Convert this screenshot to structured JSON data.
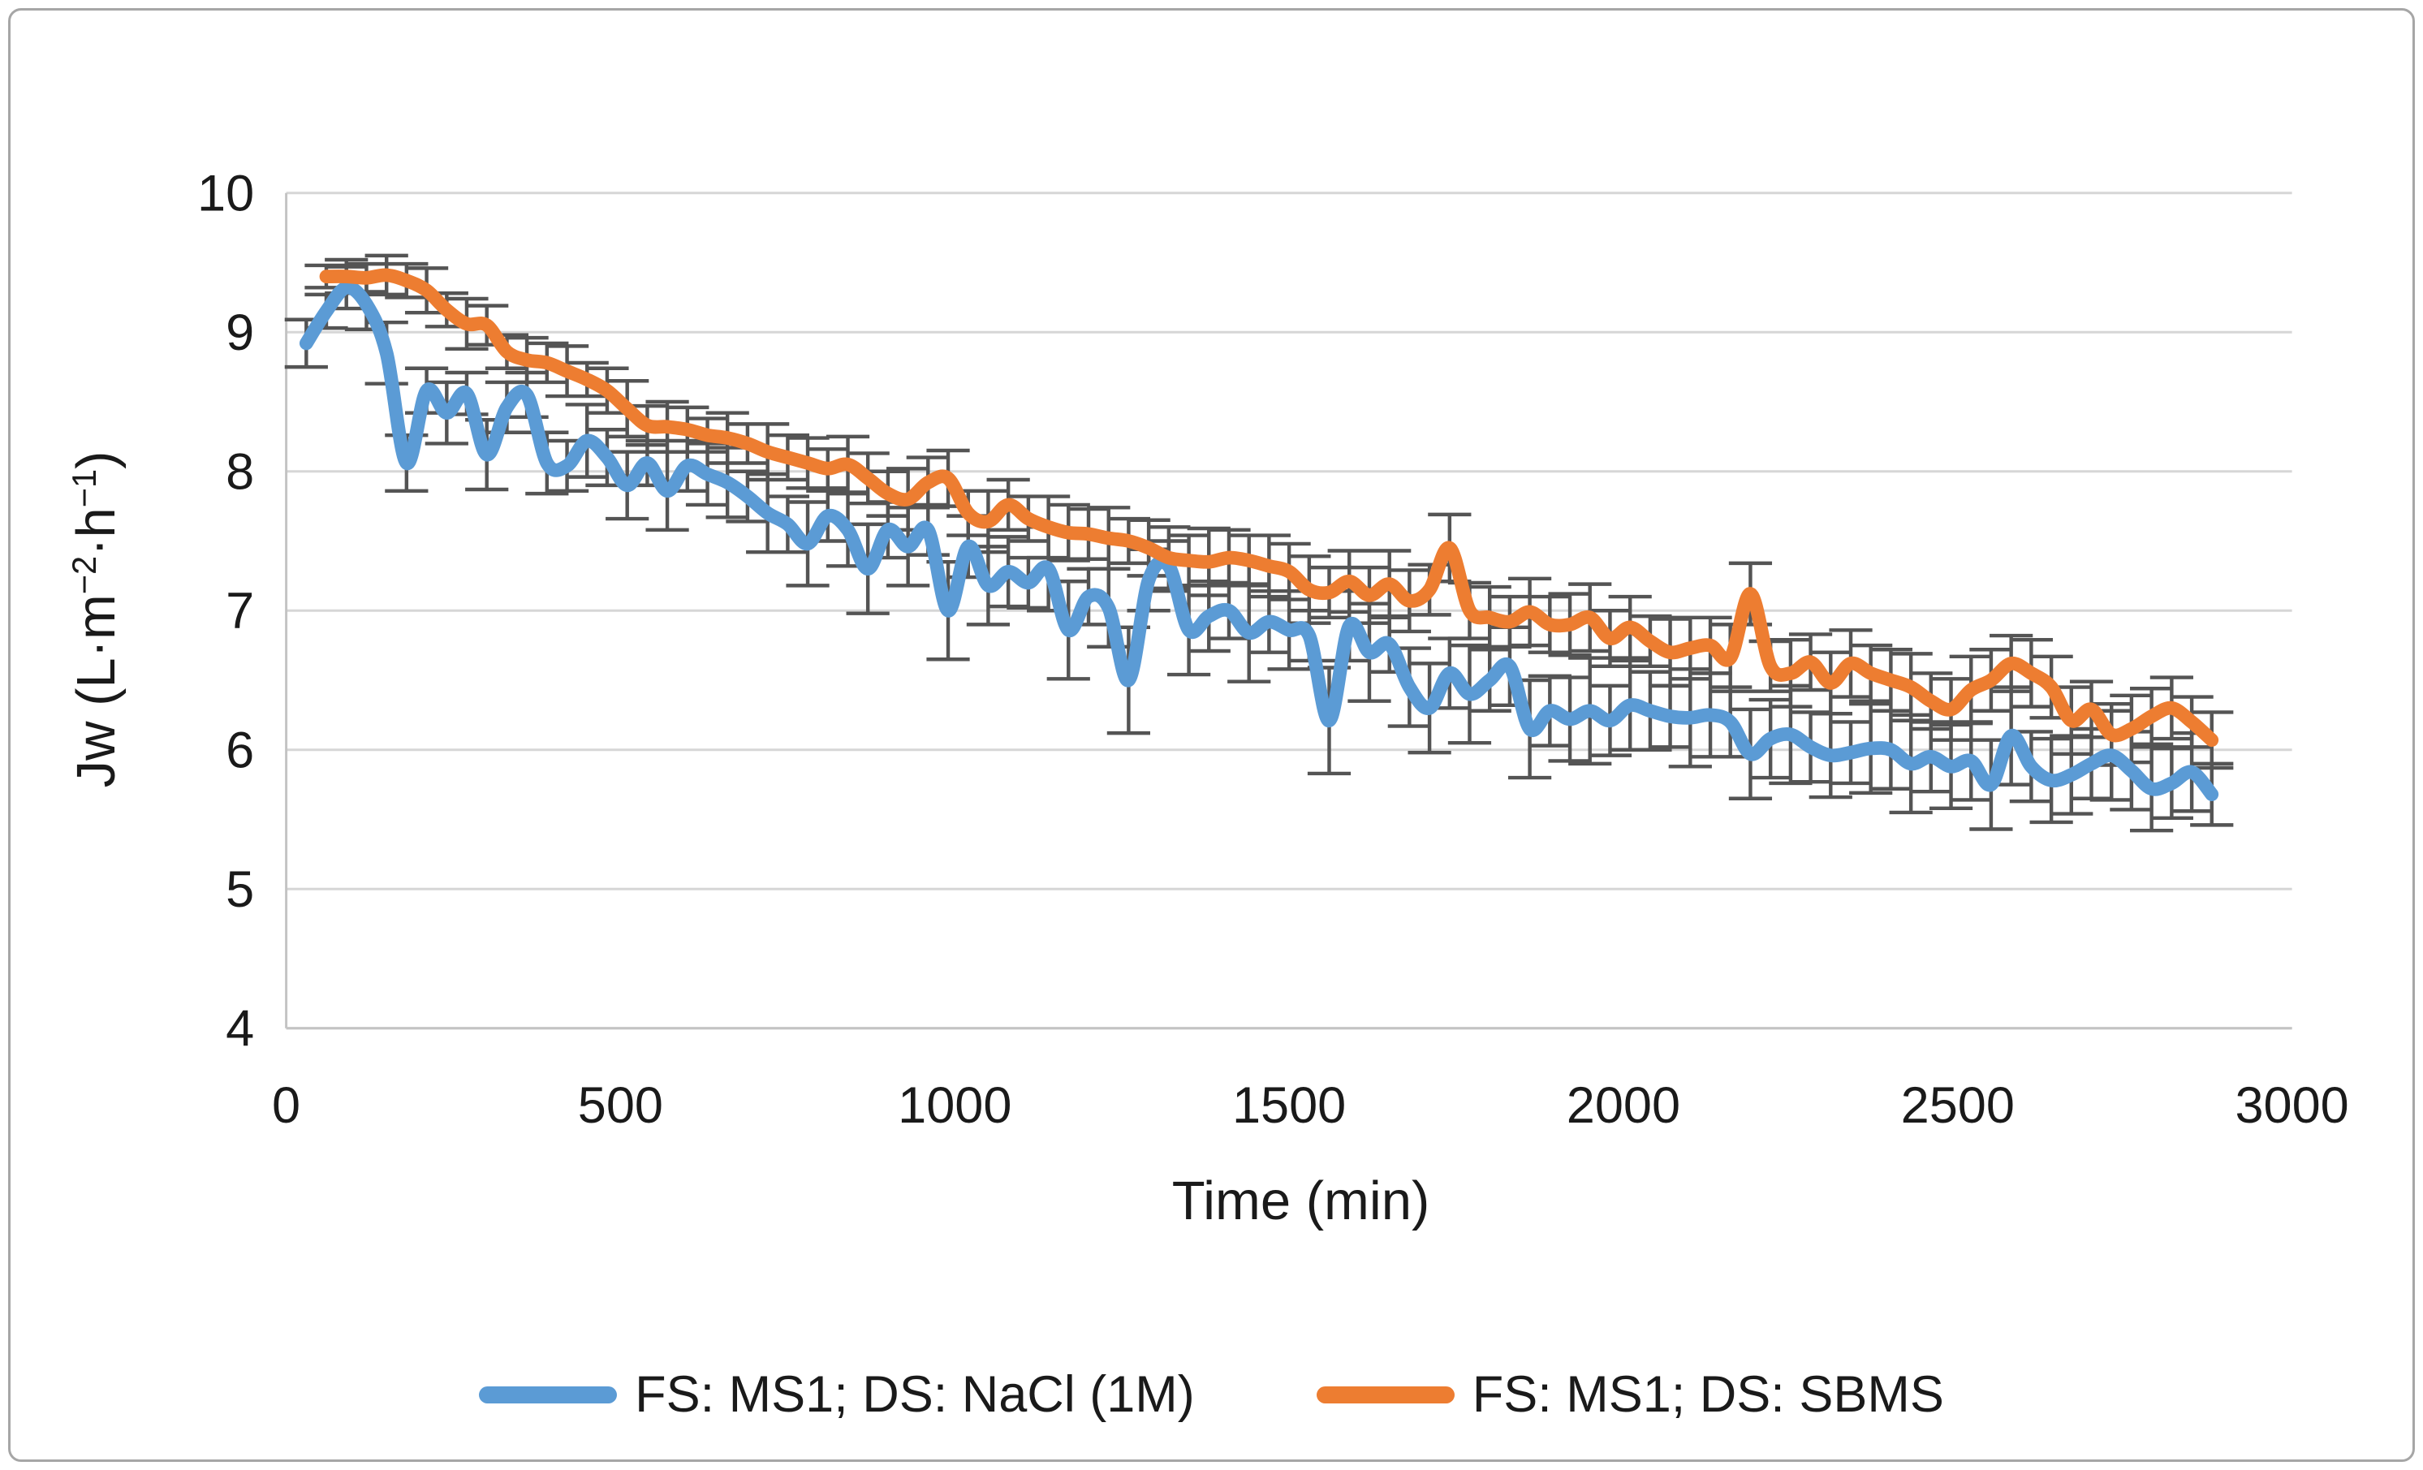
{
  "figure": {
    "border_color": "#a6a6a6",
    "background_color": "#ffffff"
  },
  "chart_data": {
    "type": "line",
    "title": "",
    "xlabel": "Time (min)",
    "ylabel": "Jw (L·m−2·h−1)",
    "ylabel_parts": {
      "prefix": "Jw (L·m",
      "sup1": "−2",
      "mid": "·h",
      "sup2": "−1",
      "suffix": ")"
    },
    "xlim": [
      0,
      3000
    ],
    "ylim": [
      4,
      10
    ],
    "xticks": [
      0,
      500,
      1000,
      1500,
      2000,
      2500,
      3000
    ],
    "yticks": [
      4,
      5,
      6,
      7,
      8,
      9,
      10
    ],
    "grid": "horizontal",
    "legend_position": "bottom",
    "gridline_color": "#D6D6D6",
    "axis_line_color": "#C3C3C3",
    "error_bar_color": "#545454",
    "text_color": "#1a1a1a",
    "x": [
      30,
      60,
      90,
      120,
      150,
      180,
      210,
      240,
      270,
      300,
      330,
      360,
      390,
      420,
      450,
      480,
      510,
      540,
      570,
      600,
      630,
      660,
      690,
      720,
      750,
      780,
      810,
      840,
      870,
      900,
      930,
      960,
      990,
      1020,
      1050,
      1080,
      1110,
      1140,
      1170,
      1200,
      1230,
      1260,
      1290,
      1320,
      1350,
      1380,
      1410,
      1440,
      1470,
      1500,
      1530,
      1560,
      1590,
      1620,
      1650,
      1680,
      1710,
      1740,
      1770,
      1800,
      1830,
      1860,
      1890,
      1920,
      1950,
      1980,
      2010,
      2040,
      2070,
      2100,
      2130,
      2160,
      2190,
      2220,
      2250,
      2280,
      2310,
      2340,
      2370,
      2400,
      2430,
      2460,
      2490,
      2520,
      2550,
      2580,
      2610,
      2640,
      2670,
      2700,
      2730,
      2760,
      2790,
      2820,
      2850,
      2880
    ],
    "series": [
      {
        "id": "nacl",
        "name": "FS: MS1; DS: NaCl (1M)",
        "color": "#5B9BD5",
        "values": [
          8.92,
          9.15,
          9.32,
          9.2,
          8.85,
          8.06,
          8.58,
          8.42,
          8.56,
          8.12,
          8.46,
          8.55,
          8.06,
          8.04,
          8.22,
          8.1,
          7.9,
          8.06,
          7.86,
          8.04,
          7.98,
          7.92,
          7.82,
          7.7,
          7.62,
          7.48,
          7.68,
          7.58,
          7.3,
          7.58,
          7.46,
          7.58,
          7.0,
          7.46,
          7.18,
          7.28,
          7.2,
          7.3,
          6.86,
          7.1,
          7.02,
          6.5,
          7.22,
          7.32,
          6.86,
          6.96,
          7.0,
          6.84,
          6.92,
          6.86,
          6.82,
          6.21,
          6.89,
          6.7,
          6.76,
          6.45,
          6.3,
          6.55,
          6.4,
          6.5,
          6.6,
          6.15,
          6.28,
          6.22,
          6.28,
          6.21,
          6.32,
          6.28,
          6.24,
          6.23,
          6.25,
          6.2,
          5.97,
          6.08,
          6.11,
          6.02,
          5.96,
          5.98,
          6.01,
          6.0,
          5.9,
          5.95,
          5.88,
          5.92,
          5.75,
          6.1,
          5.88,
          5.78,
          5.82,
          5.9,
          5.96,
          5.85,
          5.72,
          5.76,
          5.84,
          5.68
        ],
        "errors": [
          0.17,
          0.12,
          0.15,
          0.18,
          0.22,
          0.2,
          0.16,
          0.22,
          0.15,
          0.25,
          0.18,
          0.16,
          0.22,
          0.18,
          0.26,
          0.2,
          0.24,
          0.16,
          0.28,
          0.18,
          0.22,
          0.25,
          0.18,
          0.28,
          0.2,
          0.3,
          0.18,
          0.26,
          0.32,
          0.2,
          0.28,
          0.18,
          0.35,
          0.22,
          0.28,
          0.25,
          0.18,
          0.3,
          0.35,
          0.2,
          0.28,
          0.38,
          0.22,
          0.18,
          0.32,
          0.25,
          0.2,
          0.35,
          0.22,
          0.28,
          0.18,
          0.38,
          0.25,
          0.35,
          0.2,
          0.28,
          0.32,
          0.25,
          0.35,
          0.22,
          0.28,
          0.35,
          0.25,
          0.3,
          0.38,
          0.25,
          0.32,
          0.28,
          0.22,
          0.35,
          0.3,
          0.25,
          0.32,
          0.28,
          0.35,
          0.25,
          0.3,
          0.22,
          0.32,
          0.28,
          0.35,
          0.25,
          0.3,
          0.28,
          0.32,
          0.35,
          0.25,
          0.3,
          0.28,
          0.25,
          0.32,
          0.28,
          0.3,
          0.25,
          0.28,
          0.22
        ]
      },
      {
        "id": "sbms",
        "name": "FS: MS1; DS: SBMS",
        "color": "#ED7D31",
        "values": [
          null,
          9.4,
          9.4,
          9.39,
          9.41,
          9.37,
          9.3,
          9.16,
          9.06,
          9.05,
          8.86,
          8.8,
          8.78,
          8.72,
          8.66,
          8.58,
          8.45,
          8.33,
          8.32,
          8.3,
          8.26,
          8.24,
          8.2,
          8.14,
          8.1,
          8.06,
          8.02,
          8.05,
          7.95,
          7.84,
          7.8,
          7.92,
          7.95,
          7.7,
          7.64,
          7.76,
          7.66,
          7.6,
          7.56,
          7.55,
          7.52,
          7.5,
          7.45,
          7.38,
          7.36,
          7.35,
          7.38,
          7.36,
          7.32,
          7.28,
          7.15,
          7.13,
          7.21,
          7.11,
          7.19,
          7.07,
          7.15,
          7.45,
          7.0,
          6.95,
          6.92,
          6.99,
          6.9,
          6.9,
          6.95,
          6.8,
          6.88,
          6.78,
          6.7,
          6.73,
          6.75,
          6.66,
          7.12,
          6.6,
          6.55,
          6.63,
          6.48,
          6.62,
          6.55,
          6.5,
          6.45,
          6.35,
          6.29,
          6.43,
          6.5,
          6.62,
          6.55,
          6.45,
          6.21,
          6.29,
          6.11,
          6.15,
          6.24,
          6.3,
          6.2,
          6.07
        ],
        "errors": [
          0.1,
          0.08,
          0.12,
          0.1,
          0.14,
          0.12,
          0.16,
          0.12,
          0.18,
          0.14,
          0.12,
          0.16,
          0.14,
          0.18,
          0.12,
          0.16,
          0.2,
          0.14,
          0.18,
          0.16,
          0.12,
          0.18,
          0.14,
          0.2,
          0.16,
          0.18,
          0.14,
          0.2,
          0.18,
          0.16,
          0.22,
          0.18,
          0.2,
          0.16,
          0.22,
          0.18,
          0.16,
          0.22,
          0.2,
          0.18,
          0.22,
          0.16,
          0.2,
          0.22,
          0.18,
          0.24,
          0.2,
          0.18,
          0.22,
          0.2,
          0.24,
          0.18,
          0.22,
          0.2,
          0.24,
          0.22,
          0.18,
          0.24,
          0.2,
          0.22,
          0.18,
          0.24,
          0.2,
          0.22,
          0.24,
          0.2,
          0.22,
          0.18,
          0.24,
          0.22,
          0.2,
          0.24,
          0.22,
          0.18,
          0.24,
          0.2,
          0.22,
          0.24,
          0.2,
          0.22,
          0.24,
          0.2,
          0.22,
          0.24,
          0.22,
          0.2,
          0.24,
          0.22,
          0.24,
          0.2,
          0.22,
          0.24,
          0.2,
          0.22,
          0.18,
          0.2
        ]
      }
    ]
  }
}
